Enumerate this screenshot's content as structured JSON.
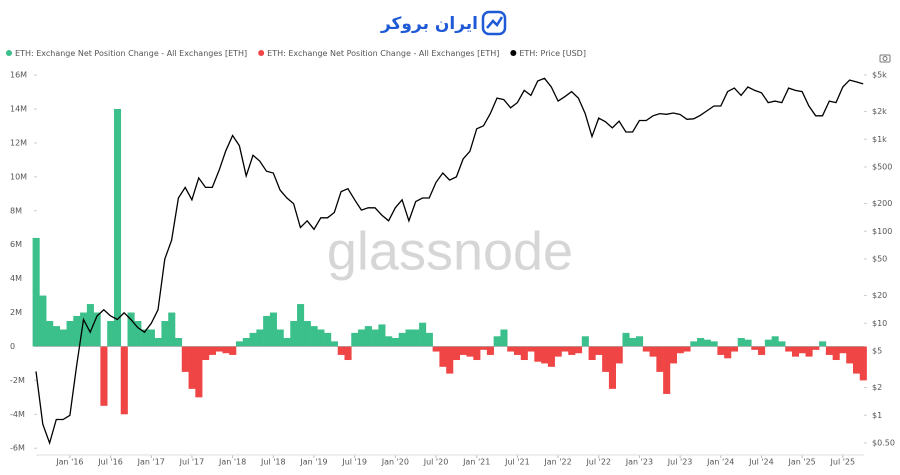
{
  "header": {
    "brand": "ایران بروکر"
  },
  "chart_data": {
    "type": "bar-line",
    "watermark": "glassnode",
    "x": [
      "2015-08",
      "2015-09",
      "2015-10",
      "2015-11",
      "2015-12",
      "2016-01",
      "2016-02",
      "2016-03",
      "2016-04",
      "2016-05",
      "2016-06",
      "2016-07",
      "2016-08",
      "2016-09",
      "2016-10",
      "2016-11",
      "2016-12",
      "2017-01",
      "2017-02",
      "2017-03",
      "2017-04",
      "2017-05",
      "2017-06",
      "2017-07",
      "2017-08",
      "2017-09",
      "2017-10",
      "2017-11",
      "2017-12",
      "2018-01",
      "2018-02",
      "2018-03",
      "2018-04",
      "2018-05",
      "2018-06",
      "2018-07",
      "2018-08",
      "2018-09",
      "2018-10",
      "2018-11",
      "2018-12",
      "2019-01",
      "2019-02",
      "2019-03",
      "2019-04",
      "2019-05",
      "2019-06",
      "2019-07",
      "2019-08",
      "2019-09",
      "2019-10",
      "2019-11",
      "2019-12",
      "2020-01",
      "2020-02",
      "2020-03",
      "2020-04",
      "2020-05",
      "2020-06",
      "2020-07",
      "2020-08",
      "2020-09",
      "2020-10",
      "2020-11",
      "2020-12",
      "2021-01",
      "2021-02",
      "2021-03",
      "2021-04",
      "2021-05",
      "2021-06",
      "2021-07",
      "2021-08",
      "2021-09",
      "2021-10",
      "2021-11",
      "2021-12",
      "2022-01",
      "2022-02",
      "2022-03",
      "2022-04",
      "2022-05",
      "2022-06",
      "2022-07",
      "2022-08",
      "2022-09",
      "2022-10",
      "2022-11",
      "2022-12",
      "2023-01",
      "2023-02",
      "2023-03",
      "2023-04",
      "2023-05",
      "2023-06",
      "2023-07",
      "2023-08",
      "2023-09",
      "2023-10",
      "2023-11",
      "2023-12",
      "2024-01",
      "2024-02",
      "2024-03",
      "2024-04",
      "2024-05",
      "2024-06",
      "2024-07",
      "2024-08",
      "2024-09",
      "2024-10",
      "2024-11",
      "2024-12",
      "2025-01",
      "2025-02",
      "2025-03",
      "2025-04",
      "2025-05",
      "2025-06",
      "2025-07",
      "2025-08",
      "2025-09",
      "2025-10"
    ],
    "xticks": [
      {
        "value": "2016-01",
        "label": "Jan '16"
      },
      {
        "value": "2016-07",
        "label": "Jul '16"
      },
      {
        "value": "2017-01",
        "label": "Jan '17"
      },
      {
        "value": "2017-07",
        "label": "Jul '17"
      },
      {
        "value": "2018-01",
        "label": "Jan '18"
      },
      {
        "value": "2018-07",
        "label": "Jul '18"
      },
      {
        "value": "2019-01",
        "label": "Jan '19"
      },
      {
        "value": "2019-07",
        "label": "Jul '19"
      },
      {
        "value": "2020-01",
        "label": "Jan '20"
      },
      {
        "value": "2020-07",
        "label": "Jul '20"
      },
      {
        "value": "2021-01",
        "label": "Jan '21"
      },
      {
        "value": "2021-07",
        "label": "Jul '21"
      },
      {
        "value": "2022-01",
        "label": "Jan '22"
      },
      {
        "value": "2022-07",
        "label": "Jul '22"
      },
      {
        "value": "2023-01",
        "label": "Jan '23"
      },
      {
        "value": "2023-07",
        "label": "Jul '23"
      },
      {
        "value": "2024-01",
        "label": "Jan '24"
      },
      {
        "value": "2024-07",
        "label": "Jul '24"
      },
      {
        "value": "2025-01",
        "label": "Jan '25"
      },
      {
        "value": "2025-07",
        "label": "Jul '25"
      }
    ],
    "ylim": [
      -6400000,
      16300000
    ],
    "yticks": [
      {
        "value": 16000000,
        "label": "16M"
      },
      {
        "value": 14000000,
        "label": "14M"
      },
      {
        "value": 12000000,
        "label": "12M"
      },
      {
        "value": 10000000,
        "label": "10M"
      },
      {
        "value": 8000000,
        "label": "8M"
      },
      {
        "value": 6000000,
        "label": "6M"
      },
      {
        "value": 4000000,
        "label": "4M"
      },
      {
        "value": 2000000,
        "label": "2M"
      },
      0,
      {
        "value": -2000000,
        "label": "-2M"
      },
      {
        "value": -4000000,
        "label": "-4M"
      },
      {
        "value": -6000000,
        "label": "-6M"
      }
    ],
    "y2lim": [
      0.37,
      5660
    ],
    "y2log": true,
    "y2ticks": [
      {
        "value": 5000,
        "label": "$5k"
      },
      {
        "value": 2000,
        "label": "$2k"
      },
      {
        "value": 1000,
        "label": "$1k"
      },
      {
        "value": 500,
        "label": "$500"
      },
      {
        "value": 200,
        "label": "$200"
      },
      {
        "value": 100,
        "label": "$100"
      },
      {
        "value": 50,
        "label": "$50"
      },
      {
        "value": 20,
        "label": "$20"
      },
      {
        "value": 10,
        "label": "$10"
      },
      {
        "value": 5,
        "label": "$5"
      },
      {
        "value": 2,
        "label": "$2"
      },
      {
        "value": 1,
        "label": "$1"
      },
      {
        "value": 0.5,
        "label": "$0.50"
      }
    ],
    "series": [
      {
        "name": "ETH: Exchange Net Position Change - All Exchanges [ETH]",
        "color": "#3cc08b",
        "values": [
          6400000,
          3000000,
          1500000,
          1200000,
          1000000,
          1500000,
          1800000,
          2000000,
          2500000,
          2000000,
          null,
          1500000,
          14000000,
          null,
          2000000,
          1500000,
          1000000,
          1000000,
          500000,
          1500000,
          2000000,
          500000,
          null,
          null,
          null,
          null,
          null,
          null,
          null,
          null,
          300000,
          500000,
          800000,
          1000000,
          1800000,
          2000000,
          1000000,
          500000,
          1500000,
          2500000,
          1500000,
          1200000,
          1000000,
          800000,
          300000,
          null,
          null,
          800000,
          1000000,
          1200000,
          1000000,
          1300000,
          600000,
          500000,
          800000,
          1000000,
          1000000,
          1400000,
          800000,
          null,
          null,
          null,
          null,
          null,
          null,
          null,
          null,
          null,
          600000,
          1000000,
          null,
          null,
          null,
          null,
          null,
          null,
          null,
          null,
          null,
          null,
          null,
          600000,
          null,
          null,
          null,
          null,
          null,
          800000,
          500000,
          600000,
          null,
          null,
          null,
          null,
          null,
          null,
          null,
          300000,
          500000,
          400000,
          300000,
          null,
          null,
          null,
          500000,
          400000,
          null,
          null,
          400000,
          600000,
          300000,
          null,
          null,
          null,
          null,
          null,
          300000,
          null,
          null,
          null,
          null,
          null,
          null
        ]
      },
      {
        "name": "ETH: Exchange Net Position Change - All Exchanges [ETH]",
        "color": "#f04545",
        "values": [
          null,
          null,
          null,
          null,
          null,
          null,
          null,
          null,
          null,
          null,
          -3500000,
          null,
          null,
          -4000000,
          null,
          null,
          null,
          null,
          null,
          null,
          null,
          null,
          -1500000,
          -2500000,
          -3000000,
          -800000,
          -500000,
          -300000,
          -400000,
          -500000,
          null,
          null,
          null,
          null,
          null,
          null,
          null,
          null,
          null,
          null,
          null,
          null,
          null,
          null,
          null,
          -500000,
          -800000,
          null,
          null,
          null,
          null,
          null,
          null,
          null,
          null,
          null,
          null,
          null,
          null,
          -300000,
          -1200000,
          -1600000,
          -800000,
          -500000,
          -600000,
          -800000,
          -200000,
          -500000,
          null,
          null,
          -300000,
          -500000,
          -800000,
          -300000,
          -900000,
          -1000000,
          -1200000,
          -600000,
          -300000,
          -500000,
          -400000,
          null,
          -800000,
          -500000,
          -1500000,
          -2500000,
          -1000000,
          null,
          null,
          null,
          -300000,
          -600000,
          -1500000,
          -2800000,
          -1000000,
          -400000,
          -300000,
          null,
          null,
          null,
          null,
          -500000,
          -700000,
          -300000,
          null,
          null,
          -200000,
          -500000,
          null,
          null,
          null,
          -300000,
          -600000,
          -400000,
          -600000,
          -200000,
          null,
          -500000,
          -800000,
          -400000,
          -1000000,
          -1600000,
          -2000000
        ]
      },
      {
        "name": "ETH: Price [USD]",
        "color": "#000000",
        "axis": "y2",
        "values": [
          3.0,
          0.8,
          0.5,
          0.9,
          0.9,
          1.0,
          3.5,
          11,
          8,
          12,
          14,
          12,
          11,
          13,
          11,
          9,
          8,
          10,
          14,
          50,
          80,
          230,
          300,
          220,
          380,
          300,
          300,
          460,
          750,
          1100,
          850,
          400,
          670,
          580,
          450,
          430,
          280,
          230,
          200,
          110,
          130,
          105,
          140,
          140,
          160,
          270,
          290,
          220,
          170,
          180,
          180,
          150,
          130,
          180,
          220,
          130,
          210,
          230,
          230,
          340,
          430,
          360,
          390,
          610,
          740,
          1300,
          1400,
          1900,
          2800,
          2700,
          2200,
          2500,
          3400,
          3000,
          4300,
          4600,
          3700,
          2600,
          2900,
          3300,
          2800,
          1900,
          1070,
          1700,
          1550,
          1330,
          1570,
          1200,
          1200,
          1600,
          1600,
          1800,
          1900,
          1870,
          1930,
          1860,
          1650,
          1670,
          1820,
          2050,
          2300,
          2300,
          3300,
          3600,
          3000,
          3700,
          3400,
          3200,
          2500,
          2600,
          2500,
          3600,
          3400,
          3300,
          2300,
          1800,
          1800,
          2600,
          2500,
          3700,
          4400,
          4200,
          4000
        ]
      }
    ]
  }
}
